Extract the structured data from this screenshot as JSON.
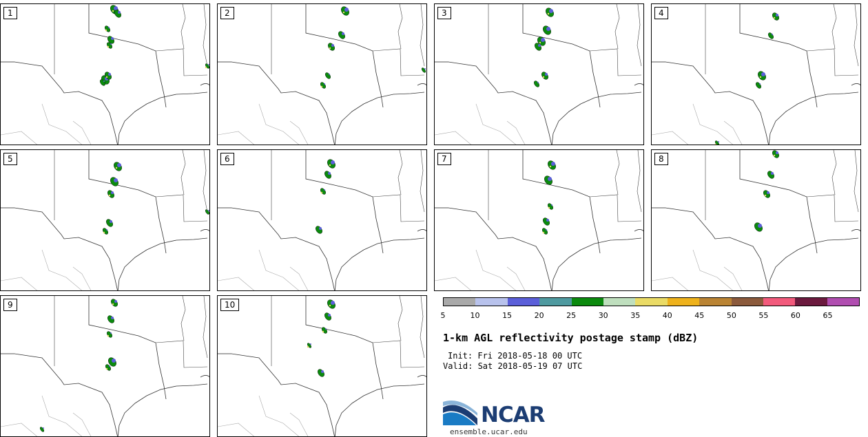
{
  "panels": [
    {
      "label": "1"
    },
    {
      "label": "2"
    },
    {
      "label": "3"
    },
    {
      "label": "4"
    },
    {
      "label": "5"
    },
    {
      "label": "6"
    },
    {
      "label": "7"
    },
    {
      "label": "8"
    },
    {
      "label": "9"
    },
    {
      "label": "10"
    }
  ],
  "colorbar": {
    "colors": [
      "#a9a9a9",
      "#b8c2ec",
      "#5b5fd9",
      "#4f9aa0",
      "#0b8a0e",
      "#bfdfbe",
      "#eadb66",
      "#eeb21c",
      "#ba8434",
      "#8b5a3c",
      "#f25a7c",
      "#6b1a3e",
      "#b04db0"
    ],
    "ticks": [
      "5",
      "10",
      "15",
      "20",
      "25",
      "30",
      "35",
      "40",
      "45",
      "50",
      "55",
      "60",
      "65"
    ]
  },
  "title": "1-km AGL reflectivity postage stamp (dBZ)",
  "init": "Init: Fri 2018-05-18 00 UTC",
  "valid": "Valid: Sat 2018-05-19 07 UTC",
  "logo": {
    "text": "NCAR",
    "url": "ensemble.ucar.edu"
  }
}
